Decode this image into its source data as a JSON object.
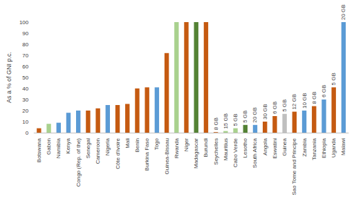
{
  "chart_data": {
    "type": "bar",
    "y_label": "As a % of GNI p.c.",
    "categories": [
      "Botswana",
      "Gabon",
      "Namibia",
      "Kenya",
      "Congo (Rep. of the)",
      "Senegal",
      "Cameroon",
      "Nigeria",
      "Côte d'Ivoire",
      "Mali",
      "Benin",
      "Burkina Faso",
      "Togo",
      "Guinea-Bissau",
      "Rwanda",
      "Niger",
      "Madagascar",
      "Burundi",
      "Seychelles",
      "Mauritius",
      "Cabo Verde",
      "Lesotho",
      "South Africa",
      "Angola",
      "Eswatini",
      "Guinea",
      "Sao Tome and Principe",
      "Zambia",
      "Tanzania",
      "Ethiopia",
      "Uganda",
      "Malawi"
    ],
    "values": [
      4,
      8,
      9,
      18,
      20,
      20,
      22,
      25,
      25,
      26,
      40,
      41,
      41,
      72,
      100,
      100,
      100,
      100,
      0.5,
      1.5,
      4,
      7,
      7,
      10,
      15,
      17,
      19,
      20,
      24,
      30,
      41,
      100
    ],
    "colors": [
      "#c55a11",
      "#a9d18e",
      "#5b9bd5",
      "#5b9bd5",
      "#5b9bd5",
      "#c55a11",
      "#c55a11",
      "#5b9bd5",
      "#c55a11",
      "#c55a11",
      "#c55a11",
      "#c55a11",
      "#5b9bd5",
      "#c55a11",
      "#a9d18e",
      "#c55a11",
      "#548235",
      "#c55a11",
      "#c55a11",
      "#a9d18e",
      "#a9d18e",
      "#548235",
      "#5b9bd5",
      "#c55a11",
      "#c55a11",
      "#bfbfbf",
      "#c55a11",
      "#5b9bd5",
      "#c55a11",
      "#5b9bd5",
      "#c55a11",
      "#5b9bd5"
    ],
    "bar_labels": [
      null,
      null,
      null,
      null,
      null,
      null,
      null,
      null,
      null,
      null,
      null,
      null,
      null,
      null,
      null,
      null,
      null,
      null,
      "8 GB",
      "15 GB",
      "5 GB",
      "5 GB",
      "20 GB",
      "30 GB",
      "6 GB",
      "5 GB",
      "12 GB",
      "10 GB",
      "8 GB",
      "6 GB",
      "5 GB",
      "20 GB"
    ],
    "ylim": [
      0,
      100
    ],
    "yticks": [
      0,
      10,
      20,
      30,
      40,
      50,
      60,
      70,
      80,
      90,
      100
    ],
    "grid": false
  }
}
